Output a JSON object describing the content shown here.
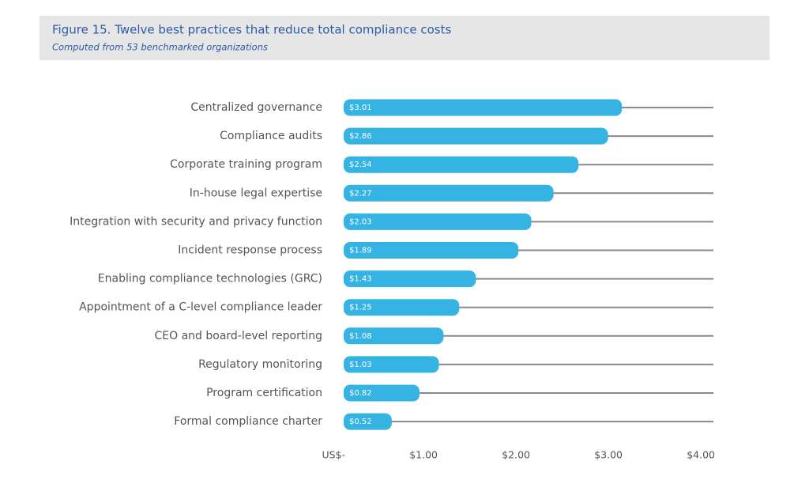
{
  "chart_data": {
    "type": "bar",
    "orientation": "horizontal",
    "title": "Figure 15. Twelve best practices that reduce total compliance costs",
    "subtitle": "Computed from 53 benchmarked organizations",
    "categories": [
      "Centralized governance",
      "Compliance audits",
      "Corporate training program",
      "In-house legal expertise",
      "Integration with security and privacy function",
      "Incident response process",
      "Enabling compliance technologies (GRC)",
      "Appointment of a C-level compliance leader",
      "CEO and board-level reporting",
      "Regulatory monitoring",
      "Program certification",
      "Formal compliance charter"
    ],
    "values": [
      3.01,
      2.86,
      2.54,
      2.27,
      2.03,
      1.89,
      1.43,
      1.25,
      1.08,
      1.03,
      0.82,
      0.52
    ],
    "value_labels": [
      "$3.01",
      "$2.86",
      "$2.54",
      "$2.27",
      "$2.03",
      "$1.89",
      "$1.43",
      "$1.25",
      "$1.08",
      "$1.03",
      "$0.82",
      "$0.52"
    ],
    "color": "#35b3e3",
    "xlim": [
      0,
      4
    ],
    "xticks": [
      {
        "value": 0,
        "label": "US$-"
      },
      {
        "value": 1,
        "label": "$1.00"
      },
      {
        "value": 2,
        "label": "$2.00"
      },
      {
        "value": 3,
        "label": "$3.00"
      },
      {
        "value": 4,
        "label": "$4.00"
      }
    ]
  }
}
